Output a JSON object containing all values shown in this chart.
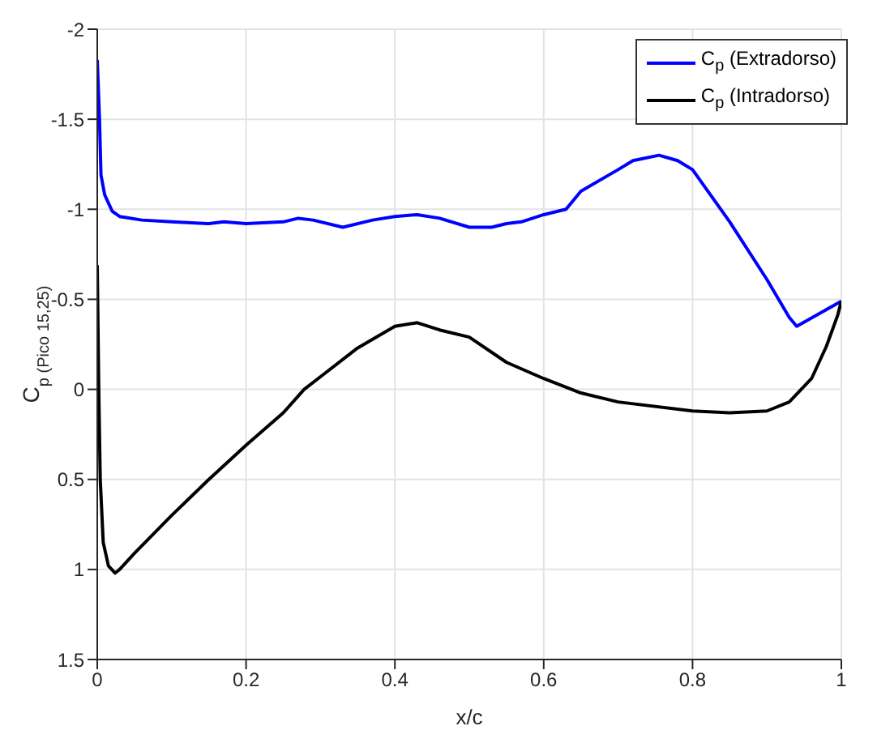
{
  "chart_data": {
    "type": "line",
    "xlabel": "x/c",
    "ylabel": "C$_{p (Pico 15,25)}$",
    "xlim": [
      0,
      1
    ],
    "xticks": [
      0,
      0.2,
      0.4,
      0.6,
      0.8,
      1
    ],
    "ylim": [
      1.5,
      -2
    ],
    "yticks": [
      -2,
      -1.5,
      -1,
      -0.5,
      0,
      0.5,
      1,
      1.5
    ],
    "grid": true,
    "legend": "top right",
    "marker": "none",
    "line_style": "solid",
    "series": [
      {
        "name": "C$_{p}$ (Extradorso)",
        "color": "#0000ff",
        "x": [
          0,
          0.003,
          0.005,
          0.01,
          0.02,
          0.03,
          0.06,
          0.1,
          0.15,
          0.17,
          0.2,
          0.25,
          0.27,
          0.29,
          0.33,
          0.37,
          0.4,
          0.43,
          0.46,
          0.5,
          0.53,
          0.55,
          0.57,
          0.6,
          0.63,
          0.65,
          0.7,
          0.72,
          0.755,
          0.78,
          0.8,
          0.85,
          0.9,
          0.93,
          0.94,
          0.97,
          1
        ],
        "values": [
          -1.83,
          -1.5,
          -1.19,
          -1.08,
          -0.99,
          -0.96,
          -0.94,
          -0.93,
          -0.92,
          -0.93,
          -0.92,
          -0.93,
          -0.95,
          -0.94,
          -0.9,
          -0.94,
          -0.96,
          -0.97,
          -0.95,
          -0.9,
          -0.9,
          -0.92,
          -0.93,
          -0.97,
          -1.0,
          -1.1,
          -1.22,
          -1.27,
          -1.3,
          -1.27,
          -1.22,
          -0.93,
          -0.61,
          -0.4,
          -0.35,
          -0.42,
          -0.49
        ]
      },
      {
        "name": "C$_{p}$ (Intradorso)",
        "color": "#000000",
        "x": [
          0,
          0.002,
          0.004,
          0.008,
          0.015,
          0.024,
          0.03,
          0.05,
          0.1,
          0.15,
          0.2,
          0.25,
          0.278,
          0.3,
          0.35,
          0.4,
          0.43,
          0.46,
          0.5,
          0.55,
          0.6,
          0.65,
          0.7,
          0.8,
          0.85,
          0.9,
          0.93,
          0.96,
          0.98,
          0.995,
          1
        ],
        "values": [
          -0.69,
          0,
          0.5,
          0.85,
          0.98,
          1.02,
          1.0,
          0.91,
          0.7,
          0.5,
          0.31,
          0.13,
          0,
          -0.07,
          -0.23,
          -0.35,
          -0.37,
          -0.33,
          -0.29,
          -0.15,
          -0.06,
          0.02,
          0.07,
          0.12,
          0.13,
          0.12,
          0.07,
          -0.06,
          -0.24,
          -0.41,
          -0.49
        ]
      }
    ]
  }
}
